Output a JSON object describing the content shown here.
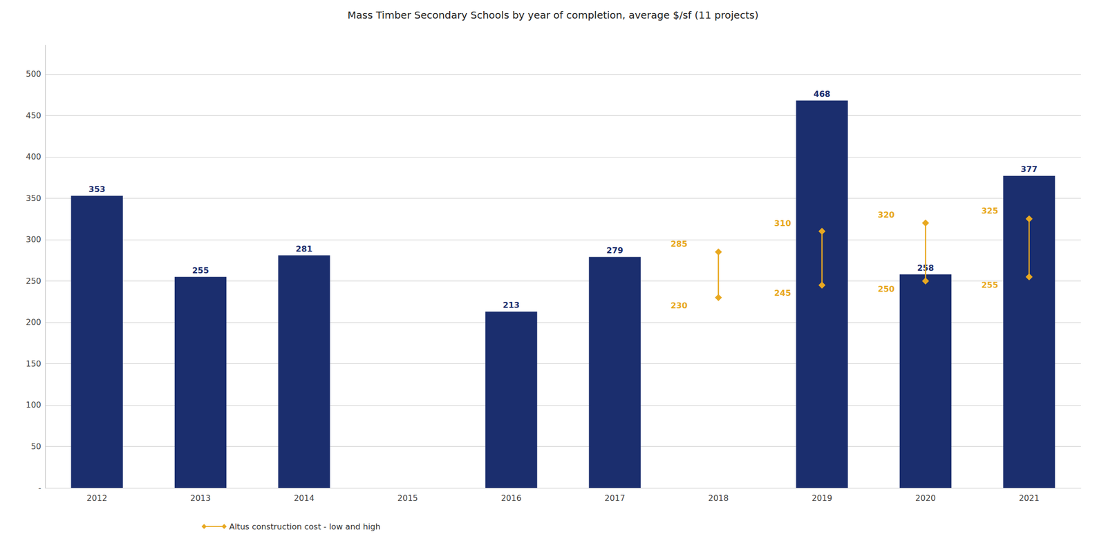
{
  "chart_data": {
    "type": "bar",
    "title": "Mass Timber Secondary Schools by year of completion, average $/sf (11 projects)",
    "categories": [
      "2012",
      "2013",
      "2014",
      "2015",
      "2016",
      "2017",
      "2018",
      "2019",
      "2020",
      "2021"
    ],
    "series": [
      {
        "type": "bar",
        "color": "#1b2e6e",
        "values": [
          353,
          255,
          281,
          null,
          213,
          279,
          null,
          468,
          258,
          377
        ]
      },
      {
        "type": "range",
        "name": "Altus construction cost - low and high",
        "color": "#e8a820",
        "marker": "diamond",
        "low": [
          null,
          null,
          null,
          null,
          null,
          null,
          230,
          245,
          250,
          255
        ],
        "high": [
          null,
          null,
          null,
          null,
          null,
          null,
          285,
          310,
          320,
          325
        ]
      }
    ],
    "ylim": [
      0,
      535
    ],
    "yticks": [
      {
        "value": 0,
        "label": "-"
      },
      50,
      100,
      150,
      200,
      250,
      300,
      350,
      400,
      450,
      500
    ],
    "grid": true,
    "data_labels": true,
    "legend": "lower left"
  }
}
